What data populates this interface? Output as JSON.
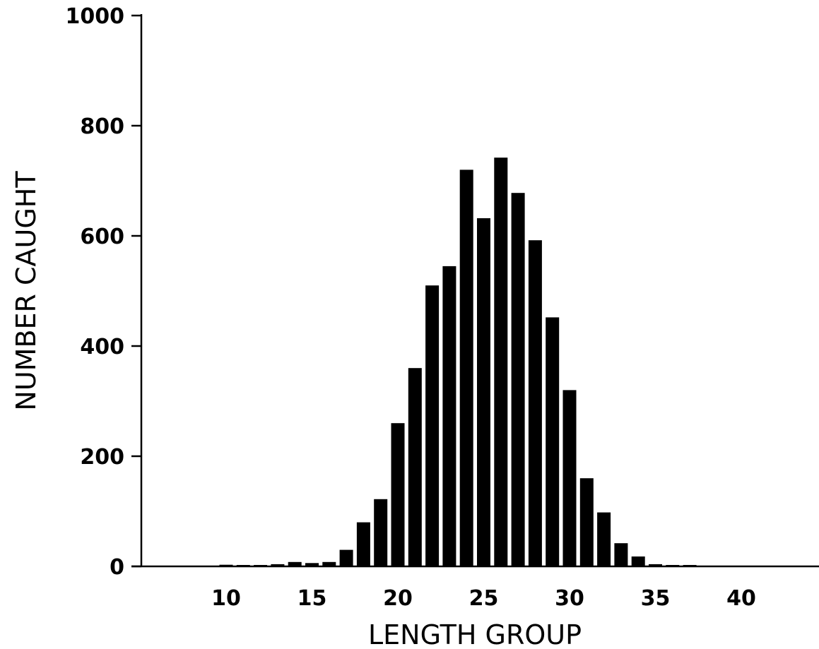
{
  "chart_data": {
    "type": "bar",
    "title": "",
    "xlabel": "LENGTH GROUP",
    "ylabel": "NUMBER CAUGHT",
    "xlim": [
      5,
      46
    ],
    "ylim": [
      0,
      1000
    ],
    "xticks": [
      10,
      15,
      20,
      25,
      30,
      35,
      40
    ],
    "yticks": [
      0,
      200,
      400,
      600,
      800,
      1000
    ],
    "grid": false,
    "bar_color": "#000000",
    "x": [
      10,
      11,
      12,
      13,
      14,
      15,
      16,
      17,
      18,
      19,
      20,
      21,
      22,
      23,
      24,
      25,
      26,
      27,
      28,
      29,
      30,
      31,
      32,
      33,
      34,
      35,
      36,
      37
    ],
    "values": [
      3,
      1,
      2,
      4,
      8,
      6,
      8,
      30,
      80,
      122,
      260,
      360,
      510,
      545,
      720,
      632,
      742,
      678,
      592,
      452,
      320,
      160,
      98,
      42,
      18,
      4,
      2,
      1
    ]
  }
}
